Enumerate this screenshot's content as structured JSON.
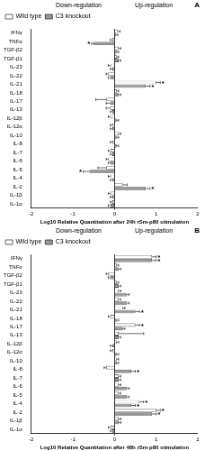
{
  "chart_data": [
    {
      "type": "bar",
      "orientation": "horizontal",
      "title": "A",
      "annotations": [
        "Down-regulation",
        "Up-regulation"
      ],
      "x_label": "Log10 Relative Quantitation after 24h rSm-p80 stimulation",
      "categories": [
        "IFNγ",
        "TNFα",
        "TGF-β2",
        "TGF-β1",
        "IL-23",
        "IL-22",
        "IL-21",
        "IL-18",
        "IL-17",
        "IL-13",
        "IL-12β",
        "IL-12α",
        "IL-10",
        "IL-8",
        "IL-7",
        "IL-6",
        "IL-5",
        "IL-4",
        "IL-2",
        "IL-1β",
        "IL-1α"
      ],
      "xlim": [
        -2,
        2
      ],
      "xticks": [
        -2,
        -1,
        0,
        1,
        2
      ],
      "grid": false,
      "legend": "top-left",
      "series": [
        {
          "name": "Wild type",
          "color": "#ffffff",
          "values": [
            0.08,
            -0.05,
            0.1,
            0.05,
            -0.1,
            -0.15,
            1.0,
            0.05,
            -0.2,
            -0.1,
            -0.1,
            -0.05,
            0.1,
            -0.05,
            -0.1,
            -0.15,
            -0.2,
            -0.1,
            0.2,
            -0.1,
            -0.05
          ],
          "errors": [
            0.05,
            0.05,
            0.05,
            0.05,
            0.05,
            0.05,
            0.1,
            0.05,
            0.25,
            0.1,
            0.05,
            0.05,
            0.05,
            0.05,
            0.05,
            0.05,
            0.2,
            0.05,
            0.1,
            0.05,
            0.05
          ],
          "significance": [
            null,
            null,
            null,
            null,
            null,
            null,
            "*",
            null,
            null,
            null,
            null,
            null,
            null,
            null,
            null,
            null,
            null,
            null,
            null,
            null,
            null
          ]
        },
        {
          "name": "C3 knockout",
          "color": "#999999",
          "values": [
            0.03,
            -0.5,
            0.05,
            0.1,
            -0.05,
            -0.1,
            0.75,
            0.1,
            -0.1,
            -0.05,
            0.05,
            -0.05,
            0.05,
            0.05,
            -0.05,
            -0.1,
            -0.6,
            -0.05,
            0.75,
            -0.05,
            -0.1
          ],
          "errors": [
            0.05,
            0.05,
            0.05,
            0.05,
            0.05,
            0.05,
            0.1,
            0.05,
            0.1,
            0.05,
            0.05,
            0.05,
            0.05,
            0.05,
            0.05,
            0.05,
            0.15,
            0.05,
            0.1,
            0.05,
            0.05
          ],
          "significance": [
            null,
            "*",
            null,
            null,
            null,
            null,
            "*",
            null,
            null,
            null,
            null,
            null,
            null,
            null,
            null,
            null,
            "*",
            null,
            "*",
            null,
            null
          ]
        }
      ]
    },
    {
      "type": "bar",
      "orientation": "horizontal",
      "title": "B",
      "annotations": [
        "Down-regulation",
        "Up-regulation"
      ],
      "x_label": "Log10 Relative Quantitation after 48h rSm-p80 stimulation",
      "categories": [
        "IFNγ",
        "TNFα",
        "TGF-β2",
        "TGF-β1",
        "IL-23",
        "IL-22",
        "IL-21",
        "IL-18",
        "IL-17",
        "IL-13",
        "IL-12β",
        "IL-12α",
        "IL-10",
        "IL-8",
        "IL-7",
        "IL-6",
        "IL-5",
        "IL-4",
        "IL-2",
        "IL-1β",
        "IL-1α"
      ],
      "xlim": [
        -2,
        2
      ],
      "xticks": [
        -2,
        -1,
        0,
        1,
        2
      ],
      "grid": false,
      "legend": "top-left",
      "series": [
        {
          "name": "Wild type",
          "color": "#ffffff",
          "values": [
            0.9,
            0.05,
            -0.15,
            0.05,
            0.1,
            0.1,
            0.2,
            -0.1,
            0.5,
            0.1,
            0.05,
            -0.05,
            0.05,
            -0.2,
            0.1,
            0.1,
            0.1,
            0.6,
            1.0,
            0.1,
            -0.1
          ],
          "errors": [
            0.1,
            0.05,
            0.05,
            0.05,
            0.05,
            0.05,
            0.05,
            0.05,
            0.1,
            0.6,
            0.05,
            0.05,
            0.05,
            0.05,
            0.05,
            0.05,
            0.05,
            0.1,
            0.1,
            0.05,
            0.05
          ],
          "significance": [
            "*",
            null,
            null,
            null,
            null,
            null,
            null,
            null,
            "*",
            null,
            null,
            null,
            null,
            null,
            null,
            null,
            null,
            "*",
            "*",
            null,
            null
          ]
        },
        {
          "name": "C3 knockout",
          "color": "#999999",
          "values": [
            0.9,
            0.1,
            -0.1,
            0.1,
            0.3,
            0.3,
            0.5,
            0.05,
            0.2,
            0.1,
            -0.05,
            0.05,
            0.05,
            0.4,
            0.1,
            0.3,
            0.3,
            0.4,
            0.9,
            0.1,
            -0.05
          ],
          "errors": [
            0.1,
            0.05,
            0.05,
            0.05,
            0.05,
            0.05,
            0.1,
            0.05,
            0.05,
            0.05,
            0.05,
            0.05,
            0.05,
            0.1,
            0.05,
            0.05,
            0.05,
            0.1,
            0.1,
            0.05,
            0.05
          ],
          "significance": [
            "*",
            null,
            null,
            null,
            null,
            null,
            "*",
            null,
            null,
            null,
            null,
            null,
            null,
            "*",
            null,
            null,
            null,
            "*",
            "*",
            null,
            null
          ]
        }
      ]
    }
  ]
}
